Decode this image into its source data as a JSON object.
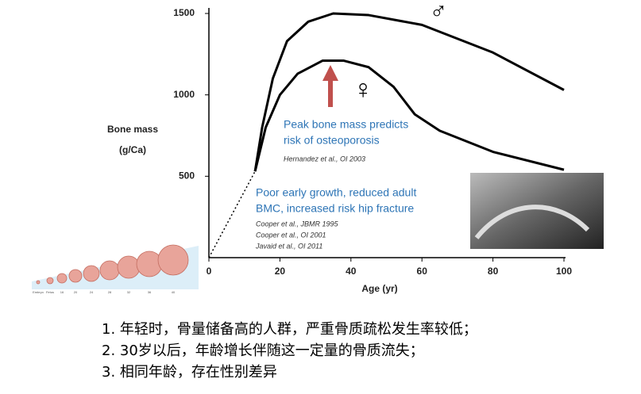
{
  "chart_data": {
    "type": "line",
    "y_label_lines": [
      "Bone mass",
      "(g/Ca)"
    ],
    "x_label": "Age (yr)",
    "xlim": [
      0,
      100
    ],
    "xticks": [
      0,
      20,
      40,
      60,
      80,
      100
    ],
    "ylim": [
      0,
      1500
    ],
    "yticks": [
      500,
      1000,
      1500
    ],
    "series": [
      {
        "name": "♂",
        "color": "#000000",
        "x": [
          13,
          15,
          18,
          22,
          28,
          35,
          45,
          60,
          80,
          100
        ],
        "values": [
          530,
          800,
          1100,
          1330,
          1450,
          1500,
          1490,
          1430,
          1260,
          1030
        ]
      },
      {
        "name": "♀",
        "color": "#000000",
        "x": [
          13,
          16,
          20,
          25,
          32,
          38,
          45,
          52,
          58,
          65,
          80,
          100
        ],
        "values": [
          530,
          800,
          1000,
          1130,
          1210,
          1210,
          1170,
          1050,
          880,
          780,
          650,
          540
        ]
      },
      {
        "color": "#000000",
        "dashed": true,
        "x": [
          0,
          13
        ],
        "values": [
          0,
          530
        ]
      }
    ],
    "annotations": [
      {
        "lines": [
          "Peak bone mass predicts",
          "risk of osteoporosis"
        ],
        "refs": [
          "Hernandez et al., OI 2003"
        ]
      },
      {
        "lines": [
          "Poor early growth, reduced adult",
          "BMC, increased risk hip fracture"
        ],
        "refs": [
          "Cooper et al., JBMR 1995",
          "Cooper et al., OI 2001",
          "Javaid et al.,  OI 2011"
        ]
      }
    ],
    "fetal_labels": [
      "Embryo",
      "Fetus",
      "16",
      "20",
      "24",
      "28",
      "32",
      "36",
      "40"
    ]
  },
  "list": [
    "1. 年轻时，骨量储备高的人群，严重骨质疏松发生率较低；",
    "2. 30岁以后，年龄增长伴随这一定量的骨质流失；",
    "3. 相同年龄，存在性别差异"
  ]
}
